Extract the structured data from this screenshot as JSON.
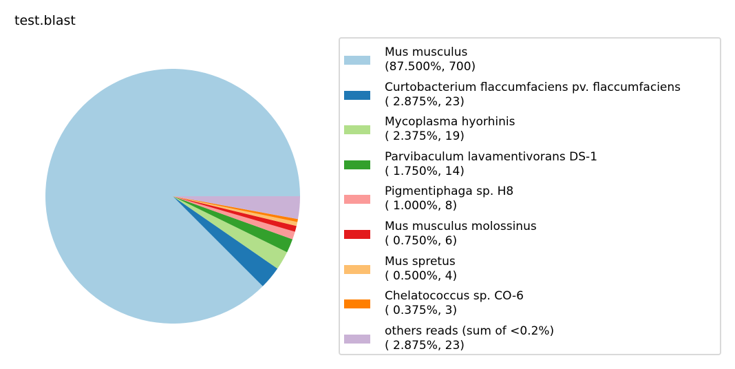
{
  "chart_data": {
    "type": "pie",
    "title": "test.blast",
    "legend_position": "right",
    "series": [
      {
        "name": "Mus musculus",
        "label": "(87.500%, 700)",
        "percent": 87.5,
        "count": 700,
        "color": "#a6cee3"
      },
      {
        "name": "Curtobacterium flaccumfaciens pv. flaccumfaciens",
        "label": "( 2.875%, 23)",
        "percent": 2.875,
        "count": 23,
        "color": "#1f78b4"
      },
      {
        "name": "Mycoplasma hyorhinis",
        "label": "( 2.375%, 19)",
        "percent": 2.375,
        "count": 19,
        "color": "#b2df8a"
      },
      {
        "name": "Parvibaculum lavamentivorans DS-1",
        "label": "( 1.750%, 14)",
        "percent": 1.75,
        "count": 14,
        "color": "#33a02c"
      },
      {
        "name": "Pigmentiphaga sp. H8",
        "label": "( 1.000%, 8)",
        "percent": 1.0,
        "count": 8,
        "color": "#fb9a99"
      },
      {
        "name": "Mus musculus molossinus",
        "label": "( 0.750%, 6)",
        "percent": 0.75,
        "count": 6,
        "color": "#e31a1c"
      },
      {
        "name": "Mus spretus",
        "label": "( 0.500%, 4)",
        "percent": 0.5,
        "count": 4,
        "color": "#fdbf6f"
      },
      {
        "name": "Chelatococcus sp. CO-6",
        "label": "( 0.375%, 3)",
        "percent": 0.375,
        "count": 3,
        "color": "#ff7f00"
      },
      {
        "name": "others reads (sum of <0.2%)",
        "label": "( 2.875%, 23)",
        "percent": 2.875,
        "count": 23,
        "color": "#cab2d6"
      }
    ]
  }
}
